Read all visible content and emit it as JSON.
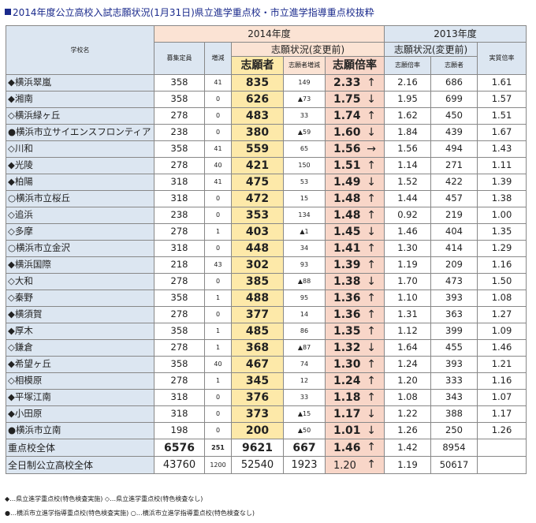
{
  "title": "2014年度公立高校入試志願状況(1月31日)県立進学重点校・市立進学指導重点校抜粋",
  "headers": {
    "school": "学校名",
    "y2014": "2014年度",
    "y2013": "2013年度",
    "capacity": "募集定員",
    "change": "増減",
    "status2014": "志願状況(変更前)",
    "applicants": "志願者",
    "applicants_change": "志願者増減",
    "ratio": "志願倍率",
    "status2013": "志願状況(変更前)",
    "ratio2013": "志願倍率",
    "applicants2013": "志願者",
    "actual_ratio": "実質倍率"
  },
  "rows": [
    {
      "name": "◆横浜翠嵐",
      "capacity": "358",
      "change": "41",
      "applicants": "835",
      "app_change": "149",
      "ratio": "2.33",
      "arrow": "↑",
      "ratio2013": "2.16",
      "applicants2013": "686",
      "actual": "1.61"
    },
    {
      "name": "◆湘南",
      "capacity": "358",
      "change": "0",
      "applicants": "626",
      "app_change": "▲73",
      "ratio": "1.75",
      "arrow": "↓",
      "ratio2013": "1.95",
      "applicants2013": "699",
      "actual": "1.57"
    },
    {
      "name": "◇横浜緑ヶ丘",
      "capacity": "278",
      "change": "0",
      "applicants": "483",
      "app_change": "33",
      "ratio": "1.74",
      "arrow": "↑",
      "ratio2013": "1.62",
      "applicants2013": "450",
      "actual": "1.51"
    },
    {
      "name": "●横浜市立サイエンスフロンティア",
      "capacity": "238",
      "change": "0",
      "applicants": "380",
      "app_change": "▲59",
      "ratio": "1.60",
      "arrow": "↓",
      "ratio2013": "1.84",
      "applicants2013": "439",
      "actual": "1.67"
    },
    {
      "name": "◇川和",
      "capacity": "358",
      "change": "41",
      "applicants": "559",
      "app_change": "65",
      "ratio": "1.56",
      "arrow": "→",
      "ratio2013": "1.56",
      "applicants2013": "494",
      "actual": "1.43"
    },
    {
      "name": "◆光陵",
      "capacity": "278",
      "change": "40",
      "applicants": "421",
      "app_change": "150",
      "ratio": "1.51",
      "arrow": "↑",
      "ratio2013": "1.14",
      "applicants2013": "271",
      "actual": "1.11"
    },
    {
      "name": "◆柏陽",
      "capacity": "318",
      "change": "41",
      "applicants": "475",
      "app_change": "53",
      "ratio": "1.49",
      "arrow": "↓",
      "ratio2013": "1.52",
      "applicants2013": "422",
      "actual": "1.39"
    },
    {
      "name": "○横浜市立桜丘",
      "capacity": "318",
      "change": "0",
      "applicants": "472",
      "app_change": "15",
      "ratio": "1.48",
      "arrow": "↑",
      "ratio2013": "1.44",
      "applicants2013": "457",
      "actual": "1.38"
    },
    {
      "name": "◇追浜",
      "capacity": "238",
      "change": "0",
      "applicants": "353",
      "app_change": "134",
      "ratio": "1.48",
      "arrow": "↑",
      "ratio2013": "0.92",
      "applicants2013": "219",
      "actual": "1.00"
    },
    {
      "name": "◇多摩",
      "capacity": "278",
      "change": "1",
      "applicants": "403",
      "app_change": "▲1",
      "ratio": "1.45",
      "arrow": "↓",
      "ratio2013": "1.46",
      "applicants2013": "404",
      "actual": "1.35"
    },
    {
      "name": "○横浜市立金沢",
      "capacity": "318",
      "change": "0",
      "applicants": "448",
      "app_change": "34",
      "ratio": "1.41",
      "arrow": "↑",
      "ratio2013": "1.30",
      "applicants2013": "414",
      "actual": "1.29"
    },
    {
      "name": "◆横浜国際",
      "capacity": "218",
      "change": "43",
      "applicants": "302",
      "app_change": "93",
      "ratio": "1.39",
      "arrow": "↑",
      "ratio2013": "1.19",
      "applicants2013": "209",
      "actual": "1.16"
    },
    {
      "name": "◇大和",
      "capacity": "278",
      "change": "0",
      "applicants": "385",
      "app_change": "▲88",
      "ratio": "1.38",
      "arrow": "↓",
      "ratio2013": "1.70",
      "applicants2013": "473",
      "actual": "1.50"
    },
    {
      "name": "◇秦野",
      "capacity": "358",
      "change": "1",
      "applicants": "488",
      "app_change": "95",
      "ratio": "1.36",
      "arrow": "↑",
      "ratio2013": "1.10",
      "applicants2013": "393",
      "actual": "1.08"
    },
    {
      "name": "◆横須賀",
      "capacity": "278",
      "change": "0",
      "applicants": "377",
      "app_change": "14",
      "ratio": "1.36",
      "arrow": "↑",
      "ratio2013": "1.31",
      "applicants2013": "363",
      "actual": "1.27"
    },
    {
      "name": "◆厚木",
      "capacity": "358",
      "change": "1",
      "applicants": "485",
      "app_change": "86",
      "ratio": "1.35",
      "arrow": "↑",
      "ratio2013": "1.12",
      "applicants2013": "399",
      "actual": "1.09"
    },
    {
      "name": "◇鎌倉",
      "capacity": "278",
      "change": "1",
      "applicants": "368",
      "app_change": "▲87",
      "ratio": "1.32",
      "arrow": "↓",
      "ratio2013": "1.64",
      "applicants2013": "455",
      "actual": "1.46"
    },
    {
      "name": "◆希望ヶ丘",
      "capacity": "358",
      "change": "40",
      "applicants": "467",
      "app_change": "74",
      "ratio": "1.30",
      "arrow": "↑",
      "ratio2013": "1.24",
      "applicants2013": "393",
      "actual": "1.21"
    },
    {
      "name": "◇相模原",
      "capacity": "278",
      "change": "1",
      "applicants": "345",
      "app_change": "12",
      "ratio": "1.24",
      "arrow": "↑",
      "ratio2013": "1.20",
      "applicants2013": "333",
      "actual": "1.16"
    },
    {
      "name": "◆平塚江南",
      "capacity": "318",
      "change": "0",
      "applicants": "376",
      "app_change": "33",
      "ratio": "1.18",
      "arrow": "↑",
      "ratio2013": "1.08",
      "applicants2013": "343",
      "actual": "1.07"
    },
    {
      "name": "◆小田原",
      "capacity": "318",
      "change": "0",
      "applicants": "373",
      "app_change": "▲15",
      "ratio": "1.17",
      "arrow": "↓",
      "ratio2013": "1.22",
      "applicants2013": "388",
      "actual": "1.17"
    },
    {
      "name": "●横浜市立南",
      "capacity": "198",
      "change": "0",
      "applicants": "200",
      "app_change": "▲50",
      "ratio": "1.01",
      "arrow": "↓",
      "ratio2013": "1.26",
      "applicants2013": "250",
      "actual": "1.26"
    }
  ],
  "totals": [
    {
      "name": "重点校全体",
      "capacity": "6576",
      "change": "251",
      "applicants": "9621",
      "app_change": "667",
      "ratio": "1.46",
      "arrow": "↑",
      "ratio2013": "1.42",
      "applicants2013": "8954",
      "actual": ""
    },
    {
      "name": "全日制公立高校全体",
      "capacity": "43760",
      "change": "1200",
      "applicants": "52540",
      "app_change": "1923",
      "ratio": "1.20",
      "arrow": "↑",
      "ratio2013": "1.19",
      "applicants2013": "50617",
      "actual": ""
    }
  ],
  "legend": {
    "line1": "◆…県立進学重点校(特色検査実施) ◇…県立進学重点校(特色検査なし)",
    "line2": "●…横浜市立進学指導重点校(特色検査実施) ○…横浜市立進学指導重点校(特色検査なし)"
  },
  "colors": {
    "title": "#1a2a8c",
    "name_bg": "#dce6f1",
    "year2014_bg": "#fbe3d4",
    "applicants_bg": "#fde9a9",
    "ratio_bg": "#f8d6c8"
  }
}
